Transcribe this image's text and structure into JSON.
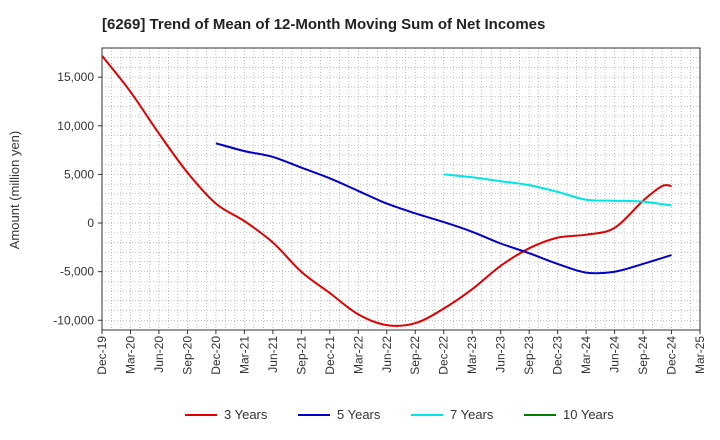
{
  "chart_data": {
    "type": "line",
    "title": "[6269]  Trend of Mean of 12-Month Moving Sum of Net Incomes",
    "ylabel": "Amount (million yen)",
    "xlabel": "",
    "ylim": [
      -11000,
      18000
    ],
    "yticks": [
      15000,
      10000,
      5000,
      0,
      -5000,
      -10000
    ],
    "ytick_labels": [
      "15,000",
      "10,000",
      "5,000",
      "0",
      "-5,000",
      "-10,000"
    ],
    "xticks": [
      "Dec-19",
      "Mar-20",
      "Jun-20",
      "Sep-20",
      "Dec-20",
      "Mar-21",
      "Jun-21",
      "Sep-21",
      "Dec-21",
      "Mar-22",
      "Jun-22",
      "Sep-22",
      "Dec-22",
      "Mar-23",
      "Jun-23",
      "Sep-23",
      "Dec-23",
      "Mar-24",
      "Jun-24",
      "Sep-24",
      "Dec-24",
      "Mar-25"
    ],
    "grid": true,
    "legend_position": "bottom",
    "series": [
      {
        "name": "3 Years",
        "color": "#e00000",
        "points": [
          [
            "Dec-19",
            17200
          ],
          [
            "Mar-20",
            13500
          ],
          [
            "Jun-20",
            9200
          ],
          [
            "Sep-20",
            5200
          ],
          [
            "Dec-20",
            2000
          ],
          [
            "Mar-21",
            200
          ],
          [
            "Jun-21",
            -2000
          ],
          [
            "Sep-21",
            -5000
          ],
          [
            "Dec-21",
            -7200
          ],
          [
            "Mar-22",
            -9400
          ],
          [
            "Jun-22",
            -10500
          ],
          [
            "Sep-22",
            -10300
          ],
          [
            "Dec-22",
            -8800
          ],
          [
            "Mar-23",
            -6800
          ],
          [
            "Jun-23",
            -4400
          ],
          [
            "Sep-23",
            -2600
          ],
          [
            "Dec-23",
            -1500
          ],
          [
            "Mar-24",
            -1200
          ],
          [
            "Jun-24",
            -500
          ],
          [
            "Sep-24",
            2300
          ],
          [
            "Nov-24",
            3800
          ],
          [
            "Dec-24",
            3800
          ]
        ]
      },
      {
        "name": "5 Years",
        "color": "#0000c8",
        "points": [
          [
            "Dec-20",
            8200
          ],
          [
            "Mar-21",
            7400
          ],
          [
            "Jun-21",
            6800
          ],
          [
            "Sep-21",
            5700
          ],
          [
            "Dec-21",
            4600
          ],
          [
            "Mar-22",
            3300
          ],
          [
            "Jun-22",
            2000
          ],
          [
            "Sep-22",
            1000
          ],
          [
            "Dec-22",
            100
          ],
          [
            "Mar-23",
            -900
          ],
          [
            "Jun-23",
            -2100
          ],
          [
            "Sep-23",
            -3100
          ],
          [
            "Dec-23",
            -4200
          ],
          [
            "Mar-24",
            -5100
          ],
          [
            "Jun-24",
            -5000
          ],
          [
            "Sep-24",
            -4200
          ],
          [
            "Dec-24",
            -3300
          ]
        ]
      },
      {
        "name": "7 Years",
        "color": "#00e5e5",
        "points": [
          [
            "Dec-22",
            5000
          ],
          [
            "Mar-23",
            4700
          ],
          [
            "Jun-23",
            4300
          ],
          [
            "Sep-23",
            3900
          ],
          [
            "Dec-23",
            3200
          ],
          [
            "Mar-24",
            2400
          ],
          [
            "Jun-24",
            2300
          ],
          [
            "Sep-24",
            2200
          ],
          [
            "Dec-24",
            1800
          ]
        ]
      },
      {
        "name": "10 Years",
        "color": "#008000",
        "points": []
      }
    ]
  }
}
